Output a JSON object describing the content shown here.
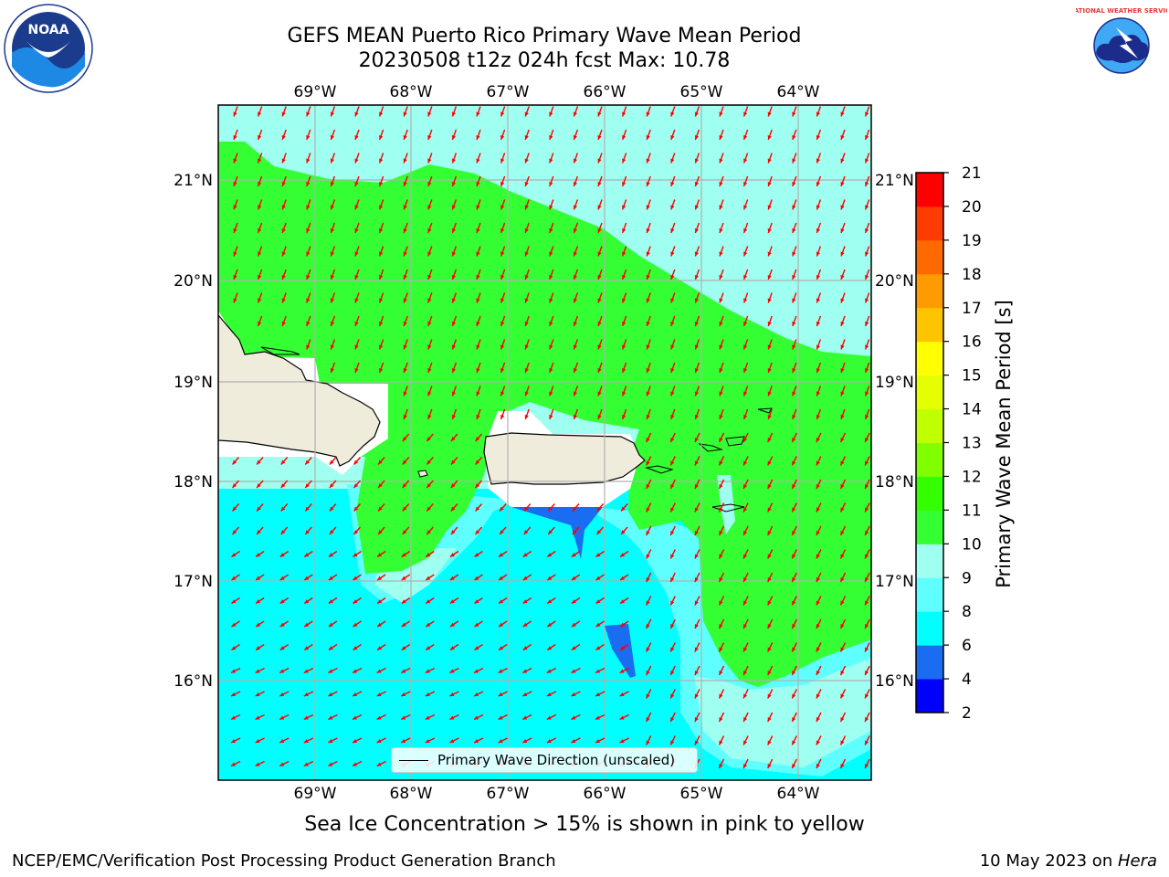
{
  "title": {
    "line1": "GEFS MEAN Puerto Rico Primary Wave Mean Period",
    "line2": "20230508 t12z 024h fcst   Max: 10.78"
  },
  "map": {
    "lon_labels": [
      "69°W",
      "68°W",
      "67°W",
      "66°W",
      "65°W",
      "64°W"
    ],
    "lat_labels": [
      "21°N",
      "20°N",
      "19°N",
      "18°N",
      "17°N",
      "16°N"
    ],
    "legend_label": "Primary Wave Direction (unscaled)",
    "land_color": "#efecdc",
    "arrow_color": "#ff0000"
  },
  "colorbar": {
    "label": "Primary Wave Mean Period [s]",
    "ticks": [
      "2",
      "4",
      "6",
      "8",
      "9",
      "10",
      "11",
      "12",
      "13",
      "14",
      "15",
      "16",
      "17",
      "18",
      "19",
      "20",
      "21"
    ],
    "colors": [
      "#0000ff",
      "#1a6cf0",
      "#00ffff",
      "#5fffff",
      "#9ffff0",
      "#33ff33",
      "#33ff00",
      "#80ff00",
      "#c0ff00",
      "#e6ff00",
      "#ffff00",
      "#ffc400",
      "#ff9a00",
      "#ff6a00",
      "#ff3c00",
      "#ff0000"
    ]
  },
  "subtitle": "Sea Ice Concentration > 15% is shown in pink to yellow",
  "footer": {
    "left": "NCEP/EMC/Verification Post Processing Product Generation Branch",
    "right_prefix": "10 May 2023 on ",
    "right_host": "Hera"
  },
  "logos": {
    "noaa": "NOAA",
    "nws": "NATIONAL WEATHER SERVICE"
  }
}
